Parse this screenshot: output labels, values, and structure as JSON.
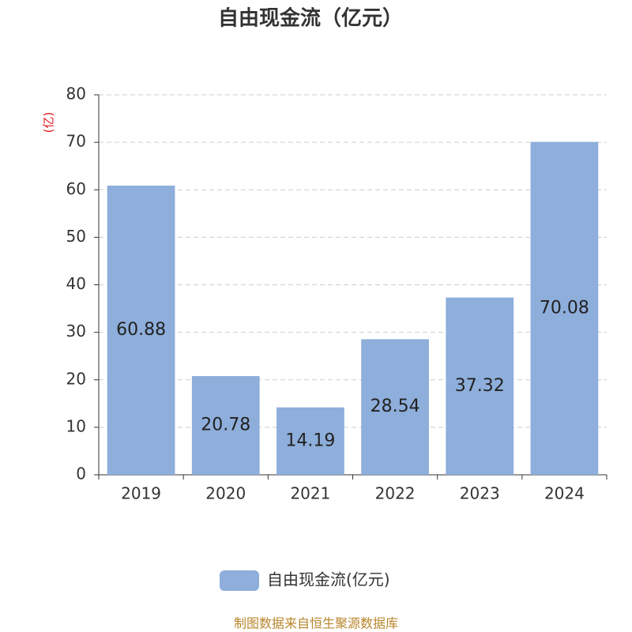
{
  "chart_data": {
    "type": "bar",
    "title": "自由现金流（亿元）",
    "y_label": "(亿)",
    "categories": [
      "2019",
      "2020",
      "2021",
      "2022",
      "2023",
      "2024"
    ],
    "series": [
      {
        "name": "自由现金流(亿元)",
        "color": "#8eaedb",
        "values": [
          60.88,
          20.78,
          14.19,
          28.54,
          37.32,
          70.08
        ]
      }
    ],
    "ylim": [
      0,
      80
    ],
    "yticks": [
      0,
      10,
      20,
      30,
      40,
      50,
      60,
      70,
      80
    ],
    "grid": true,
    "source": "制图数据来自恒生聚源数据库"
  }
}
